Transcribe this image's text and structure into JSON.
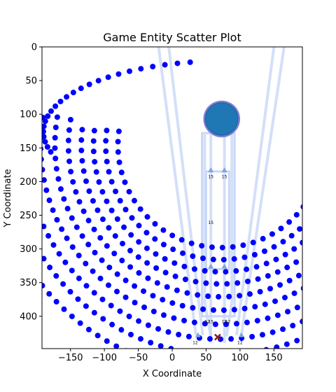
{
  "chart_data": {
    "type": "scatter",
    "title": "Game Entity Scatter Plot",
    "xlabel": "X Coordinate",
    "ylabel": "Y Coordinate",
    "xlim": [
      -192,
      192
    ],
    "ylim": [
      448,
      0
    ],
    "y_inverted": true,
    "grid": false,
    "xticks": [
      -150,
      -100,
      -50,
      0,
      50,
      100,
      150
    ],
    "yticks": [
      0,
      50,
      100,
      150,
      200,
      250,
      300,
      350,
      400
    ],
    "colors": {
      "dots": "#0000ff",
      "player": "#1f77b4",
      "player_ring": "#7b7fd6",
      "paths": "#c9d7f6",
      "marker": "#8b1a1a",
      "triangles": "#7fa6e0"
    },
    "arc_rows": [
      {
        "r": 152,
        "step": 5.8
      },
      {
        "r": 170,
        "step": 5.2
      },
      {
        "r": 188,
        "step": 4.7
      },
      {
        "r": 206,
        "step": 4.3
      },
      {
        "r": 225,
        "step": 3.95
      },
      {
        "r": 245,
        "step": 3.6
      },
      {
        "r": 266,
        "step": 3.35
      },
      {
        "r": 288,
        "step": 3.1
      },
      {
        "r": 311,
        "step": 2.9
      },
      {
        "r": 336,
        "step": 2.7
      }
    ],
    "arc_center": {
      "x": 72,
      "y": 106
    },
    "player": {
      "x": 73,
      "y": 107,
      "r": 24
    },
    "target_marker": {
      "x": 67,
      "y": 431,
      "shape": "x"
    },
    "triangles": [
      {
        "x": 57,
        "y": 183
      },
      {
        "x": 77,
        "y": 183
      },
      {
        "x": 57,
        "y": 326
      },
      {
        "x": 77,
        "y": 326
      },
      {
        "x": 38,
        "y": 428
      },
      {
        "x": 102,
        "y": 428
      }
    ],
    "small_labels": [
      {
        "x": 57,
        "y": 195,
        "text": "15"
      },
      {
        "x": 77,
        "y": 195,
        "text": "15"
      },
      {
        "x": 57,
        "y": 263,
        "text": "15"
      },
      {
        "x": 52,
        "y": 410,
        "text": "12"
      },
      {
        "x": 57,
        "y": 410,
        "text": "15"
      },
      {
        "x": 77,
        "y": 410,
        "text": "15"
      },
      {
        "x": 82,
        "y": 410,
        "text": "12"
      },
      {
        "x": 34,
        "y": 441,
        "text": "12"
      },
      {
        "x": 100,
        "y": 441,
        "text": "12"
      }
    ],
    "path_lines": [
      {
        "points": [
          [
            -20,
            0
          ],
          [
            35,
            428
          ]
        ]
      },
      {
        "points": [
          [
            -5,
            0
          ],
          [
            45,
            428
          ]
        ]
      },
      {
        "points": [
          [
            165,
            0
          ],
          [
            102,
            428
          ]
        ]
      },
      {
        "points": [
          [
            150,
            0
          ],
          [
            95,
            428
          ]
        ]
      },
      {
        "points": [
          [
            48,
            130
          ],
          [
            48,
            380
          ],
          [
            57,
            430
          ]
        ]
      },
      {
        "points": [
          [
            57,
            130
          ],
          [
            57,
            440
          ]
        ]
      },
      {
        "points": [
          [
            77,
            130
          ],
          [
            77,
            440
          ]
        ]
      },
      {
        "points": [
          [
            88,
            130
          ],
          [
            88,
            380
          ],
          [
            80,
            430
          ]
        ]
      }
    ],
    "path_rects": [
      {
        "x0": 44,
        "y0": 128,
        "x1": 92,
        "y1": 400
      },
      {
        "x0": 50,
        "y0": 185,
        "x1": 84,
        "y1": 330
      }
    ]
  }
}
